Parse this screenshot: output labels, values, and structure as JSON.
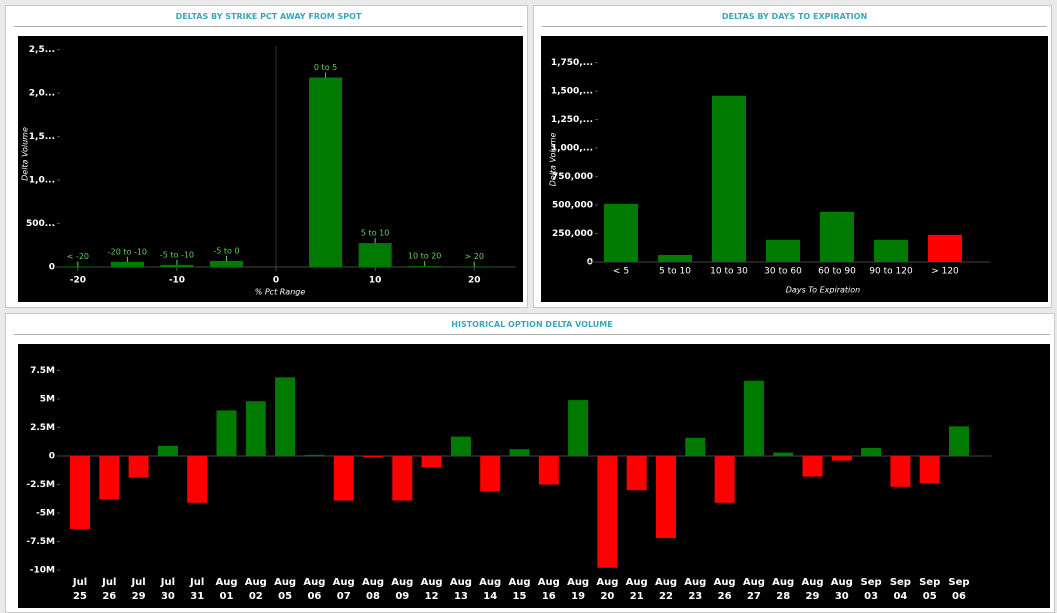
{
  "chart_data": [
    {
      "type": "bar",
      "title": "DELTAS BY STRIKE PCT AWAY FROM SPOT",
      "y_label": "Delta Volume",
      "x_label": "% Pct Range",
      "categories": [
        "< -20",
        "-20 to -10",
        "-5 to -10",
        "-5 to 0",
        "0 to 5",
        "5 to 10",
        "10 to 20",
        "> 20"
      ],
      "x": [
        -20,
        -15,
        -10,
        -5,
        5,
        10,
        15,
        20
      ],
      "values": [
        5000,
        60000,
        25000,
        70000,
        2180000,
        275000,
        10000,
        5000
      ],
      "color": "#007a00",
      "xlim": [
        -21.6,
        22.4
      ],
      "xticks": [
        -20,
        -10,
        0,
        10,
        20
      ],
      "ylim": [
        0,
        2600000
      ],
      "yticks": [
        0,
        {
          "value": 500000,
          "label": "500..."
        },
        {
          "value": 1000000,
          "label": "1,0..."
        },
        {
          "value": 1500000,
          "label": "1,5..."
        },
        {
          "value": 2000000,
          "label": "2,0..."
        },
        {
          "value": 2500000,
          "label": "2,5..."
        }
      ]
    },
    {
      "type": "bar",
      "title": "DELTAS BY DAYS TO EXPIRATION",
      "y_label": "Delta Volume",
      "x_label": "Days To Expiration",
      "categories": [
        "< 5",
        "5 to 10",
        "10 to 30",
        "30 to 60",
        "60 to 90",
        "90 to 120",
        "> 120"
      ],
      "values": [
        510000,
        62000,
        1460000,
        195000,
        440000,
        195000,
        238000
      ],
      "colors": [
        "#007a00",
        "#007a00",
        "#007a00",
        "#007a00",
        "#007a00",
        "#007a00",
        "#ff0000"
      ],
      "ylim": [
        0,
        1800000
      ],
      "yticks": [
        0,
        {
          "value": 250000,
          "label": "250,000"
        },
        {
          "value": 500000,
          "label": "500,000"
        },
        {
          "value": 750000,
          "label": "750,000"
        },
        {
          "value": 1000000,
          "label": "1,000,..."
        },
        {
          "value": 1250000,
          "label": "1,250,..."
        },
        {
          "value": 1500000,
          "label": "1,500,..."
        },
        {
          "value": 1750000,
          "label": "1,750,..."
        }
      ]
    },
    {
      "type": "bar",
      "title": "HISTORICAL OPTION DELTA VOLUME",
      "categories": [
        [
          "Jul",
          "25"
        ],
        [
          "Jul",
          "26"
        ],
        [
          "Jul",
          "29"
        ],
        [
          "Jul",
          "30"
        ],
        [
          "Jul",
          "31"
        ],
        [
          "Aug",
          "01"
        ],
        [
          "Aug",
          "02"
        ],
        [
          "Aug",
          "05"
        ],
        [
          "Aug",
          "06"
        ],
        [
          "Aug",
          "07"
        ],
        [
          "Aug",
          "08"
        ],
        [
          "Aug",
          "09"
        ],
        [
          "Aug",
          "12"
        ],
        [
          "Aug",
          "13"
        ],
        [
          "Aug",
          "14"
        ],
        [
          "Aug",
          "15"
        ],
        [
          "Aug",
          "16"
        ],
        [
          "Aug",
          "19"
        ],
        [
          "Aug",
          "20"
        ],
        [
          "Aug",
          "21"
        ],
        [
          "Aug",
          "22"
        ],
        [
          "Aug",
          "23"
        ],
        [
          "Aug",
          "26"
        ],
        [
          "Aug",
          "27"
        ],
        [
          "Aug",
          "28"
        ],
        [
          "Aug",
          "29"
        ],
        [
          "Aug",
          "30"
        ],
        [
          "Sep",
          "03"
        ],
        [
          "Sep",
          "04"
        ],
        [
          "Sep",
          "05"
        ],
        [
          "Sep",
          "06"
        ]
      ],
      "values": [
        -6.4,
        -3.8,
        -1.9,
        0.9,
        -4.1,
        4.0,
        4.8,
        6.9,
        0.1,
        -3.9,
        -0.1,
        -3.9,
        -1.0,
        1.7,
        -3.1,
        0.6,
        -2.5,
        4.9,
        -9.8,
        -3.0,
        -7.2,
        1.6,
        -4.1,
        6.6,
        0.3,
        -1.8,
        -0.4,
        0.7,
        -2.7,
        -2.4,
        2.6
      ],
      "positive_color": "#007a00",
      "negative_color": "#ff0000",
      "ylim": [
        -10.4,
        9.7
      ],
      "yticks": [
        {
          "value": -10,
          "label": "-10M"
        },
        {
          "value": -7.5,
          "label": "-7.5M"
        },
        {
          "value": -5,
          "label": "-5M"
        },
        {
          "value": -2.5,
          "label": "-2.5M"
        },
        0,
        {
          "value": 2.5,
          "label": "2.5M"
        },
        {
          "value": 5,
          "label": "5M"
        },
        {
          "value": 7.5,
          "label": "7.5M"
        }
      ]
    }
  ]
}
